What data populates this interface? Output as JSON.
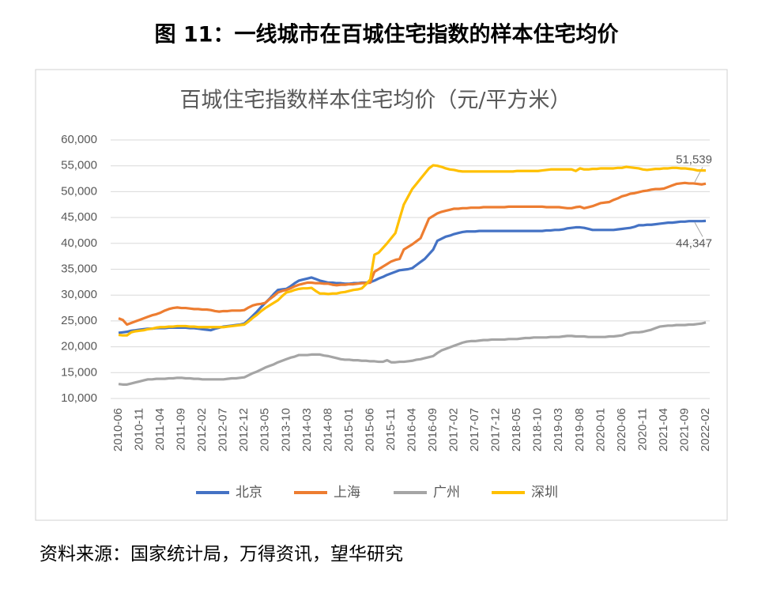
{
  "title": "图 11：一线城市在百城住宅指数的样本住宅均价",
  "source": "资料来源：国家统计局，万得资讯，望华研究",
  "chart_data": {
    "type": "line",
    "title": "百城住宅指数样本住宅均价（元/平方米）",
    "categories": [
      "2010-06",
      null,
      null,
      null,
      null,
      "2010-11",
      null,
      null,
      null,
      null,
      "2011-04",
      null,
      null,
      null,
      null,
      "2011-09",
      null,
      null,
      null,
      null,
      "2012-02",
      null,
      null,
      null,
      null,
      "2012-07",
      null,
      null,
      null,
      null,
      "2012-12",
      null,
      null,
      null,
      null,
      "2013-05",
      null,
      null,
      null,
      null,
      "2013-10",
      null,
      null,
      null,
      null,
      "2014-03",
      null,
      null,
      null,
      null,
      "2014-08",
      null,
      null,
      null,
      null,
      "2015-01",
      null,
      null,
      null,
      null,
      "2015-06",
      null,
      null,
      null,
      null,
      "2015-11",
      null,
      null,
      null,
      null,
      "2016-04",
      null,
      null,
      null,
      null,
      "2016-09",
      null,
      null,
      null,
      null,
      "2017-02",
      null,
      null,
      null,
      null,
      "2017-07",
      null,
      null,
      null,
      null,
      "2017-12",
      null,
      null,
      null,
      null,
      "2018-05",
      null,
      null,
      null,
      null,
      "2018-10",
      null,
      null,
      null,
      null,
      "2019-03",
      null,
      null,
      null,
      null,
      "2019-08",
      null,
      null,
      null,
      null,
      "2020-01",
      null,
      null,
      null,
      null,
      "2020-06",
      null,
      null,
      null,
      null,
      "2020-11",
      null,
      null,
      null,
      null,
      "2021-04",
      null,
      null,
      null,
      null,
      "2021-09",
      null,
      null,
      null,
      null,
      "2022-02"
    ],
    "ylim": [
      10000,
      60000
    ],
    "yticks": [
      {
        "value": 10000,
        "label": "10,000"
      },
      {
        "value": 15000,
        "label": "15,000"
      },
      {
        "value": 20000,
        "label": "20,000"
      },
      {
        "value": 25000,
        "label": "25,000"
      },
      {
        "value": 30000,
        "label": "30,000"
      },
      {
        "value": 35000,
        "label": "35,000"
      },
      {
        "value": 40000,
        "label": "40,000"
      },
      {
        "value": 45000,
        "label": "45,000"
      },
      {
        "value": 50000,
        "label": "50,000"
      },
      {
        "value": 55000,
        "label": "55,000"
      },
      {
        "value": 60000,
        "label": "60,000"
      }
    ],
    "grid": true,
    "legend": "bottom",
    "series": [
      {
        "name": "北京",
        "color": "#4472c4",
        "values": [
          22700,
          22800,
          22900,
          23100,
          23200,
          23300,
          23400,
          23500,
          23500,
          23600,
          23600,
          23600,
          23700,
          23700,
          23700,
          23700,
          23700,
          23600,
          23600,
          23500,
          23400,
          23300,
          23200,
          23500,
          23700,
          23900,
          24000,
          24100,
          24200,
          24300,
          24500,
          25200,
          26000,
          26800,
          27700,
          28500,
          29300,
          30200,
          31000,
          31100,
          31200,
          31700,
          32300,
          32800,
          33000,
          33200,
          33400,
          33100,
          32800,
          32600,
          32400,
          32400,
          32300,
          32300,
          32200,
          32200,
          32300,
          32300,
          32400,
          32400,
          32500,
          32800,
          33200,
          33500,
          33900,
          34200,
          34500,
          34800,
          34900,
          35000,
          35200,
          35800,
          36400,
          37000,
          37900,
          38800,
          40500,
          40900,
          41300,
          41500,
          41800,
          42000,
          42200,
          42300,
          42300,
          42300,
          42400,
          42400,
          42400,
          42400,
          42400,
          42400,
          42400,
          42400,
          42400,
          42400,
          42400,
          42400,
          42400,
          42400,
          42400,
          42400,
          42500,
          42500,
          42600,
          42600,
          42700,
          42900,
          43000,
          43100,
          43100,
          43000,
          42800,
          42600,
          42600,
          42600,
          42600,
          42600,
          42600,
          42700,
          42800,
          42900,
          43000,
          43200,
          43500,
          43500,
          43600,
          43600,
          43700,
          43800,
          43900,
          44000,
          44000,
          44100,
          44200,
          44200,
          44300,
          44300,
          44300,
          44300,
          44347
        ],
        "value_labels": [
          null,
          null,
          null,
          null,
          null,
          null,
          null,
          null,
          null,
          null,
          null,
          null,
          null,
          null,
          null,
          null,
          null,
          null,
          null,
          null,
          null,
          null,
          null,
          null,
          null,
          null,
          null,
          null,
          null,
          null,
          null,
          null,
          null,
          null,
          null,
          null,
          null,
          null,
          null,
          null,
          null,
          null,
          null,
          null,
          null,
          null,
          null,
          null,
          null,
          null,
          null,
          null,
          null,
          null,
          null,
          null,
          null,
          null,
          null,
          null,
          null,
          null,
          null,
          null,
          null,
          null,
          null,
          null,
          null,
          null,
          null,
          null,
          null,
          null,
          null,
          null,
          null,
          null,
          null,
          null,
          null,
          null,
          null,
          null,
          null,
          null,
          null,
          null,
          null,
          null,
          null,
          null,
          null,
          null,
          null,
          null,
          null,
          null,
          null,
          null,
          null,
          null,
          null,
          null,
          null,
          null,
          null,
          null,
          null,
          null,
          null,
          null,
          null,
          null,
          null,
          null,
          null,
          null,
          null,
          null,
          null,
          null,
          null,
          null,
          null,
          null,
          null,
          null,
          null,
          null,
          null,
          null,
          null,
          null,
          null,
          null,
          null,
          null,
          null,
          null,
          "44,347"
        ]
      },
      {
        "name": "上海",
        "color": "#ed7d31",
        "values": [
          25500,
          25200,
          24300,
          24600,
          24900,
          25200,
          25500,
          25800,
          26100,
          26300,
          26600,
          27000,
          27300,
          27500,
          27600,
          27500,
          27500,
          27400,
          27300,
          27300,
          27200,
          27200,
          27100,
          26900,
          26800,
          26900,
          26900,
          27000,
          27000,
          27000,
          27100,
          27600,
          28000,
          28200,
          28300,
          28500,
          29200,
          29800,
          30500,
          30800,
          31000,
          31300,
          31700,
          32000,
          32200,
          32400,
          32400,
          32300,
          32300,
          32200,
          32200,
          32000,
          31900,
          32000,
          32000,
          32100,
          32100,
          32200,
          32300,
          32300,
          32400,
          34500,
          35000,
          35500,
          36000,
          36500,
          36800,
          37000,
          38800,
          39300,
          39800,
          40400,
          41000,
          42900,
          44800,
          45300,
          45800,
          46100,
          46300,
          46500,
          46700,
          46700,
          46800,
          46800,
          46900,
          46900,
          46900,
          47000,
          47000,
          47000,
          47000,
          47000,
          47000,
          47100,
          47100,
          47100,
          47100,
          47100,
          47100,
          47100,
          47100,
          47100,
          47000,
          47000,
          47000,
          47000,
          46900,
          46800,
          46800,
          47000,
          47100,
          46800,
          47000,
          47200,
          47500,
          47800,
          47900,
          48000,
          48400,
          48700,
          49100,
          49300,
          49600,
          49700,
          49900,
          50100,
          50200,
          50400,
          50500,
          50500,
          50600,
          50900,
          51200,
          51500,
          51600,
          51700,
          51600,
          51600,
          51500,
          51400,
          51539
        ],
        "value_labels": [
          null,
          null,
          null,
          null,
          null,
          null,
          null,
          null,
          null,
          null,
          null,
          null,
          null,
          null,
          null,
          null,
          null,
          null,
          null,
          null,
          null,
          null,
          null,
          null,
          null,
          null,
          null,
          null,
          null,
          null,
          null,
          null,
          null,
          null,
          null,
          null,
          null,
          null,
          null,
          null,
          null,
          null,
          null,
          null,
          null,
          null,
          null,
          null,
          null,
          null,
          null,
          null,
          null,
          null,
          null,
          null,
          null,
          null,
          null,
          null,
          null,
          null,
          null,
          null,
          null,
          null,
          null,
          null,
          null,
          null,
          null,
          null,
          null,
          null,
          null,
          null,
          null,
          null,
          null,
          null,
          null,
          null,
          null,
          null,
          null,
          null,
          null,
          null,
          null,
          null,
          null,
          null,
          null,
          null,
          null,
          null,
          null,
          null,
          null,
          null,
          null,
          null,
          null,
          null,
          null,
          null,
          null,
          null,
          null,
          null,
          null,
          null,
          null,
          null,
          null,
          null,
          null,
          null,
          null,
          null,
          null,
          null,
          null,
          null,
          null,
          null,
          null,
          null,
          null,
          null,
          null,
          null,
          null,
          null,
          null,
          null,
          null,
          null,
          null,
          null,
          "51,539"
        ]
      },
      {
        "name": "广州",
        "color": "#a5a5a5",
        "values": [
          12800,
          12700,
          12700,
          12900,
          13100,
          13300,
          13500,
          13700,
          13700,
          13800,
          13800,
          13800,
          13900,
          13900,
          14000,
          14000,
          13900,
          13900,
          13800,
          13800,
          13700,
          13700,
          13700,
          13700,
          13700,
          13700,
          13800,
          13900,
          13900,
          14000,
          14100,
          14500,
          14900,
          15200,
          15600,
          16000,
          16300,
          16600,
          17000,
          17300,
          17600,
          17900,
          18100,
          18400,
          18400,
          18400,
          18500,
          18500,
          18500,
          18300,
          18200,
          18000,
          17800,
          17600,
          17500,
          17500,
          17400,
          17400,
          17300,
          17300,
          17200,
          17200,
          17100,
          17100,
          17400,
          17000,
          17000,
          17100,
          17100,
          17200,
          17300,
          17500,
          17600,
          17800,
          18000,
          18200,
          18800,
          19300,
          19600,
          19900,
          20200,
          20500,
          20800,
          21000,
          21100,
          21100,
          21200,
          21300,
          21300,
          21400,
          21400,
          21400,
          21400,
          21500,
          21500,
          21500,
          21600,
          21700,
          21700,
          21800,
          21800,
          21800,
          21800,
          21900,
          21900,
          21900,
          22000,
          22100,
          22100,
          22000,
          22000,
          22000,
          21900,
          21900,
          21900,
          21900,
          21900,
          22000,
          22000,
          22100,
          22200,
          22500,
          22700,
          22800,
          22800,
          22900,
          23100,
          23300,
          23600,
          23900,
          24000,
          24100,
          24100,
          24200,
          24200,
          24200,
          24300,
          24300,
          24400,
          24500,
          24700
        ]
      },
      {
        "name": "深圳",
        "color": "#ffc000",
        "values": [
          22300,
          22200,
          22200,
          22800,
          23000,
          23100,
          23200,
          23400,
          23500,
          23700,
          23800,
          23800,
          23900,
          23900,
          24000,
          24000,
          24000,
          23900,
          23900,
          23800,
          23800,
          23800,
          23800,
          23800,
          23800,
          23800,
          23900,
          24000,
          24100,
          24200,
          24300,
          24900,
          25600,
          26200,
          26900,
          27500,
          28000,
          28500,
          29000,
          29800,
          30500,
          30700,
          31000,
          31200,
          31300,
          31300,
          31400,
          30800,
          30300,
          30300,
          30200,
          30300,
          30300,
          30500,
          30600,
          30800,
          31000,
          31100,
          31300,
          32100,
          33000,
          37800,
          38200,
          39100,
          40000,
          41000,
          42000,
          44800,
          47500,
          49000,
          50500,
          51500,
          52500,
          53500,
          54500,
          55100,
          55000,
          54800,
          54500,
          54300,
          54200,
          54000,
          53900,
          53900,
          53900,
          53900,
          53900,
          53900,
          53900,
          53900,
          53900,
          53900,
          53900,
          53900,
          53900,
          54000,
          54000,
          54000,
          54000,
          54000,
          54000,
          54100,
          54200,
          54300,
          54300,
          54300,
          54300,
          54300,
          54300,
          54000,
          54500,
          54300,
          54300,
          54400,
          54400,
          54500,
          54500,
          54500,
          54500,
          54600,
          54600,
          54800,
          54700,
          54600,
          54500,
          54300,
          54200,
          54300,
          54400,
          54400,
          54500,
          54500,
          54600,
          54600,
          54500,
          54500,
          54400,
          54300,
          54100,
          54100,
          54100
        ]
      }
    ]
  }
}
